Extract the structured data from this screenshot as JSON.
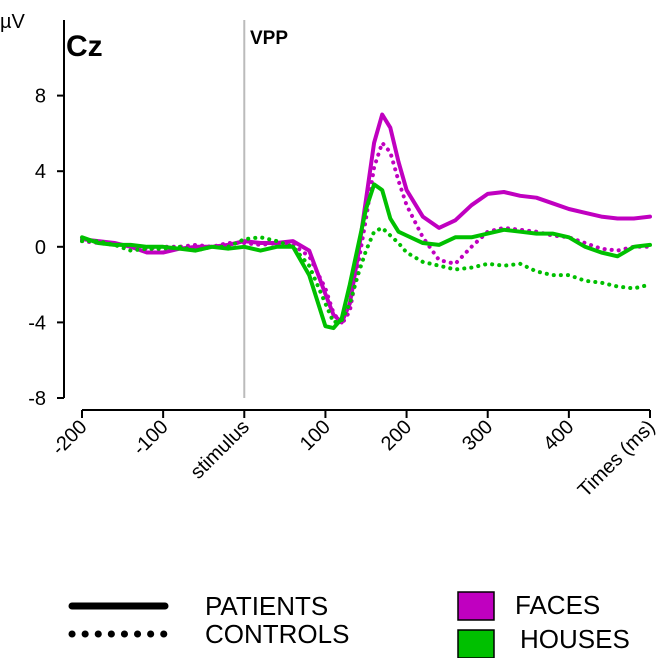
{
  "chart_data": {
    "type": "line",
    "title": "Cz",
    "y_label": "µV",
    "annotation": "VPP",
    "x": [
      -200,
      -180,
      -160,
      -140,
      -120,
      -100,
      -80,
      -60,
      -40,
      -20,
      0,
      20,
      40,
      60,
      80,
      100,
      110,
      120,
      130,
      140,
      150,
      160,
      170,
      180,
      190,
      200,
      220,
      240,
      260,
      280,
      300,
      320,
      340,
      360,
      380,
      400,
      420,
      440,
      460,
      480,
      500
    ],
    "series": [
      {
        "color": "#c000c0",
        "style": "solid",
        "values": [
          0.4,
          0.3,
          0.2,
          0,
          -0.3,
          -0.3,
          -0.1,
          0,
          0,
          0.1,
          0.3,
          0.2,
          0.2,
          0.3,
          -0.2,
          -2.5,
          -3.6,
          -4.0,
          -3.0,
          -0.5,
          2.5,
          5.5,
          7.0,
          6.3,
          4.5,
          3.0,
          1.6,
          1.0,
          1.4,
          2.2,
          2.8,
          2.9,
          2.7,
          2.6,
          2.3,
          2.0,
          1.8,
          1.6,
          1.5,
          1.5,
          1.6
        ]
      },
      {
        "color": "#c000c0",
        "style": "dotted",
        "values": [
          0.3,
          0.2,
          0.1,
          0,
          -0.1,
          0,
          0,
          0.1,
          0,
          0.2,
          0.2,
          0.1,
          0.2,
          0.1,
          -0.5,
          -2.2,
          -3.5,
          -4.1,
          -3.4,
          -1.0,
          1.5,
          4.2,
          5.5,
          5.0,
          3.5,
          2.2,
          0.5,
          -0.7,
          -0.9,
          0,
          0.8,
          1.0,
          0.9,
          0.8,
          0.6,
          0.5,
          0.2,
          -0.1,
          -0.2,
          0,
          0
        ]
      },
      {
        "color": "#00c000",
        "style": "solid",
        "values": [
          0.5,
          0.2,
          0.1,
          0.1,
          0,
          0,
          -0.1,
          -0.2,
          0,
          -0.1,
          0,
          -0.2,
          0,
          0,
          -1.5,
          -4.2,
          -4.3,
          -3.8,
          -2.0,
          0,
          2.0,
          3.3,
          3.0,
          1.5,
          0.8,
          0.6,
          0.2,
          0.1,
          0.5,
          0.5,
          0.7,
          0.9,
          0.8,
          0.7,
          0.7,
          0.5,
          0,
          -0.3,
          -0.5,
          0,
          0.1
        ]
      },
      {
        "color": "#00c000",
        "style": "dotted",
        "values": [
          0.3,
          0.3,
          0.1,
          -0.2,
          -0.1,
          -0.1,
          0,
          -0.2,
          0,
          0,
          0.4,
          0.5,
          0.3,
          0,
          -1.0,
          -3.0,
          -4.0,
          -3.9,
          -3.0,
          -1.5,
          -0.2,
          0.8,
          1.0,
          0.6,
          0.2,
          -0.3,
          -0.8,
          -1.0,
          -1.2,
          -1.1,
          -0.9,
          -1.0,
          -0.9,
          -1.3,
          -1.5,
          -1.5,
          -1.8,
          -1.9,
          -2.1,
          -2.2,
          -2.0
        ]
      }
    ],
    "xlim": [
      -200,
      500
    ],
    "xticks": [
      -200,
      -100,
      {
        "value": 0,
        "label": "stimulus"
      },
      100,
      200,
      300,
      400,
      {
        "value": 500,
        "label": "Times (ms)"
      }
    ],
    "ylim": [
      -8,
      12
    ],
    "yticks": [
      8,
      4,
      0,
      -4,
      -8
    ],
    "legend": {
      "styles": [
        {
          "label": "PATIENTS",
          "style": "solid"
        },
        {
          "label": "CONTROLS",
          "style": "dotted"
        }
      ],
      "colors": [
        {
          "label": "FACES",
          "color": "#c000c0"
        },
        {
          "label": "HOUSES",
          "color": "#00c000"
        }
      ]
    }
  }
}
